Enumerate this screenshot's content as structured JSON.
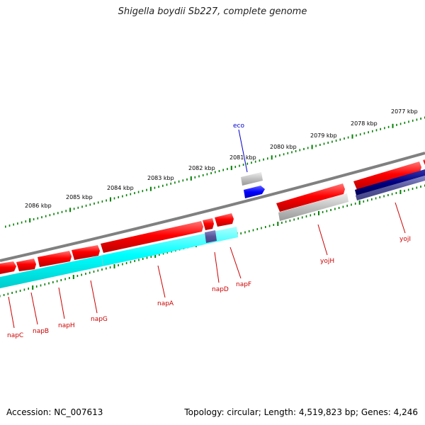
{
  "title": "Shigella boydii Sb227, complete genome",
  "footer": {
    "accession": "Accession: NC_007613",
    "topology": "Topology: circular; Length: 4,519,823 bp; Genes: 4,246"
  },
  "scale_labels": [
    "2086 kbp",
    "2085 kbp",
    "2084 kbp",
    "2083 kbp",
    "2082 kbp",
    "2081 kbp",
    "2080 kbp",
    "2079 kbp",
    "2078 kbp",
    "2077 kbp"
  ],
  "gene_labels": [
    "napC",
    "napB",
    "napH",
    "napG",
    "napA",
    "napD",
    "napF",
    "yojH",
    "yojI"
  ],
  "feature_labels": [
    "eco"
  ],
  "colors": {
    "backbone": "#808080",
    "cds_forward": "#ff0000",
    "cds_reverse": "#00ffff",
    "misc_feature": "#c0c0c0",
    "regulatory": "#0000ff",
    "navy_feature": "#000080",
    "tick": "#008000",
    "gene_label": "#cc0000",
    "feature_label": "#0000cc"
  }
}
